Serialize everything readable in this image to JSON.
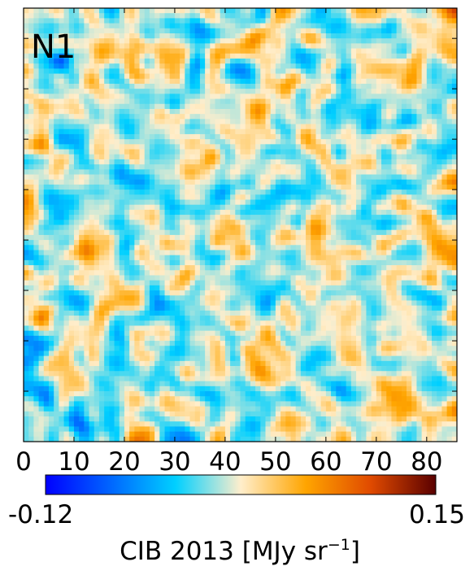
{
  "panel_label": "N1",
  "colorbar": {
    "min_label": "-0.12",
    "max_label": "0.15",
    "label_main": "CIB 2013 [MJy sr",
    "label_exp": "−1",
    "label_close": "]",
    "stops": [
      "#0000ff",
      "#0066ff",
      "#00d0ff",
      "#ffeecc",
      "#ffa500",
      "#e04a00",
      "#5a0000"
    ]
  },
  "chart_data": {
    "type": "heatmap",
    "title": "",
    "xlabel": "",
    "ylabel": "",
    "xlim": [
      0,
      86
    ],
    "grid_size": [
      86,
      86
    ],
    "x_ticks": [
      0,
      10,
      20,
      30,
      40,
      50,
      60,
      70,
      80
    ],
    "x_tick_labels": [
      "0",
      "10",
      "20",
      "30",
      "40",
      "50",
      "60",
      "70",
      "80"
    ],
    "value_range": [
      -0.12,
      0.15
    ],
    "colormap": "blue-white-orange-darkred",
    "grid": false
  }
}
